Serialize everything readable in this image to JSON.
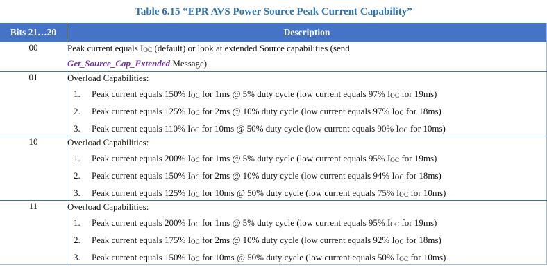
{
  "title": "Table 6.15 “EPR AVS Power Source Peak Current Capability”",
  "colors": {
    "title_blue": "#2E74B5",
    "header_bg": "#4574C6",
    "header_text": "#FFFFFF",
    "row_separator": "#4471B0",
    "outer_border": "#9FBBDD",
    "column_separator": "#A9C0DE",
    "message_purple": "#7030A0",
    "body_text": "#141414"
  },
  "table": {
    "header": {
      "col1": "Bits 21…20",
      "col2": "Description"
    },
    "rows": [
      {
        "bits": "00",
        "lines": [
          {
            "seg": [
              [
                "t",
                "Peak current equals I"
              ],
              [
                "sub",
                "OC"
              ],
              [
                "t",
                " (default) or look at extended Source capabilities (send"
              ]
            ]
          },
          {
            "seg": [
              [
                "msg",
                "Get_Source_Cap_Extended"
              ],
              [
                "t",
                " Message)"
              ]
            ]
          }
        ]
      },
      {
        "bits": "01",
        "lines": [
          {
            "seg": [
              [
                "t",
                "Overload Capabilities:"
              ]
            ]
          },
          {
            "num": "1.",
            "seg": [
              [
                "t",
                "Peak current equals 150% I"
              ],
              [
                "sub",
                "OC"
              ],
              [
                "t",
                " for 1ms @ 5% duty cycle (low current equals 97% I"
              ],
              [
                "sub",
                "OC"
              ],
              [
                "t",
                " for 19ms)"
              ]
            ]
          },
          {
            "num": "2.",
            "seg": [
              [
                "t",
                "Peak current equals 125% I"
              ],
              [
                "sub",
                "OC"
              ],
              [
                "t",
                " for 2ms @ 10% duty cycle (low current equals 97% I"
              ],
              [
                "sub",
                "OC"
              ],
              [
                "t",
                " for 18ms)"
              ]
            ]
          },
          {
            "num": "3.",
            "seg": [
              [
                "t",
                "Peak current equals 110% I"
              ],
              [
                "sub",
                "OC"
              ],
              [
                "t",
                " for 10ms @ 50% duty cycle (low current equals 90% I"
              ],
              [
                "sub",
                "OC"
              ],
              [
                "t",
                " for 10ms)"
              ]
            ]
          }
        ]
      },
      {
        "bits": "10",
        "lines": [
          {
            "seg": [
              [
                "t",
                "Overload Capabilities:"
              ]
            ]
          },
          {
            "num": "1.",
            "seg": [
              [
                "t",
                "Peak current equals 200% I"
              ],
              [
                "sub",
                "OC"
              ],
              [
                "t",
                " for 1ms @ 5% duty cycle (low current equals 95% I"
              ],
              [
                "sub",
                "OC"
              ],
              [
                "t",
                " for 19ms)"
              ]
            ]
          },
          {
            "num": "2.",
            "seg": [
              [
                "t",
                "Peak current equals 150% I"
              ],
              [
                "sub",
                "OC"
              ],
              [
                "t",
                " for 2ms @ 10% duty cycle (low current equals 94% I"
              ],
              [
                "sub",
                "OC"
              ],
              [
                "t",
                " for 18ms)"
              ]
            ]
          },
          {
            "num": "3.",
            "seg": [
              [
                "t",
                "Peak current equals 125% I"
              ],
              [
                "sub",
                "OC"
              ],
              [
                "t",
                " for 10ms @ 50% duty cycle (low current equals 75% I"
              ],
              [
                "sub",
                "OC"
              ],
              [
                "t",
                " for 10ms)"
              ]
            ]
          }
        ]
      },
      {
        "bits": "11",
        "lines": [
          {
            "seg": [
              [
                "t",
                "Overload Capabilities:"
              ]
            ]
          },
          {
            "num": "1.",
            "seg": [
              [
                "t",
                "Peak current equals 200% I"
              ],
              [
                "sub",
                "OC"
              ],
              [
                "t",
                " for 1ms @ 5% duty cycle (low current equals 95% I"
              ],
              [
                "sub",
                "OC"
              ],
              [
                "t",
                " for 19ms)"
              ]
            ]
          },
          {
            "num": "2.",
            "seg": [
              [
                "t",
                "Peak current equals 175% I"
              ],
              [
                "sub",
                "OC"
              ],
              [
                "t",
                " for 2ms @ 10% duty cycle (low current equals 92% I"
              ],
              [
                "sub",
                "OC"
              ],
              [
                "t",
                " for 18ms)"
              ]
            ]
          },
          {
            "num": "3.",
            "seg": [
              [
                "t",
                "Peak current equals 150% I"
              ],
              [
                "sub",
                "OC"
              ],
              [
                "t",
                " for 10ms @ 50% duty cycle (low current equals 50% I"
              ],
              [
                "sub",
                "OC"
              ],
              [
                "t",
                " for 10ms)"
              ]
            ]
          }
        ]
      }
    ]
  }
}
